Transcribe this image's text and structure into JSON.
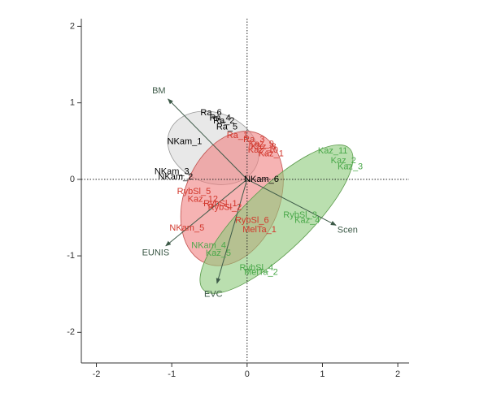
{
  "chart_data": {
    "type": "biplot",
    "xlim": [
      -2.2,
      2.15
    ],
    "ylim": [
      -2.4,
      2.1
    ],
    "xticks": [
      -2,
      -1,
      0,
      1,
      2
    ],
    "yticks": [
      -2,
      -1,
      0,
      1,
      2
    ],
    "groups": [
      {
        "color": "#000000",
        "fill": "#d9d9d9",
        "stroke": "#999999",
        "ellipse": {
          "cx": -0.45,
          "cy": 0.41,
          "rx": 0.62,
          "ry": 0.46,
          "angle": -20
        },
        "labels": [
          "Ra_6",
          "Ra_4",
          "Ra_2",
          "Ra_5",
          "NKam_1",
          "NKam_3",
          "NKam_2",
          "NKam_6"
        ],
        "x": [
          -0.62,
          -0.5,
          -0.45,
          -0.41,
          -1.06,
          -1.23,
          -1.18,
          -0.04
        ],
        "y": [
          0.87,
          0.8,
          0.76,
          0.68,
          0.49,
          0.1,
          0.03,
          0.0
        ]
      },
      {
        "color": "#d2372c",
        "fill": "#f08080",
        "stroke": "#c0504d",
        "ellipse": {
          "cx": -0.2,
          "cy": -0.25,
          "rx": 0.93,
          "ry": 0.62,
          "angle": 68
        },
        "labels": [
          "Ra_1",
          "Ra_3",
          "Kaz_9",
          "Kaz_8",
          "Kaz_10",
          "Kaz_1",
          "RybSl_5",
          "Kaz_12",
          "RybSl_1",
          "RybSl_2",
          "NKam_5",
          "RybSl_6",
          "MelTa_1"
        ],
        "x": [
          -0.27,
          -0.05,
          0.02,
          0.05,
          0.01,
          0.15,
          -0.93,
          -0.79,
          -0.58,
          -0.52,
          -1.03,
          -0.16,
          -0.06
        ],
        "y": [
          0.57,
          0.52,
          0.46,
          0.42,
          0.38,
          0.33,
          -0.16,
          -0.26,
          -0.32,
          -0.37,
          -0.64,
          -0.54,
          -0.66
        ]
      },
      {
        "color": "#4aa84a",
        "fill": "#8cc97a",
        "stroke": "#5a9a4a",
        "ellipse": {
          "cx": 0.39,
          "cy": -0.52,
          "rx": 1.35,
          "ry": 0.42,
          "angle": 44
        },
        "labels": [
          "Kaz_11",
          "Kaz_2",
          "Kaz_3",
          "RybSl_3",
          "Kaz_4",
          "NKam_4",
          "Kaz_5",
          "RybSl_4",
          "MelTa_2"
        ],
        "x": [
          0.94,
          1.11,
          1.2,
          0.48,
          0.63,
          -0.74,
          -0.55,
          -0.1,
          -0.04
        ],
        "y": [
          0.37,
          0.24,
          0.16,
          -0.47,
          -0.54,
          -0.87,
          -0.97,
          -1.16,
          -1.22
        ]
      }
    ],
    "arrows": {
      "color": "#3d5a48",
      "labels": [
        "BM",
        "Scen",
        "EUNIS",
        "EVC"
      ],
      "x": [
        -1.05,
        1.18,
        -1.08,
        -0.4
      ],
      "y": [
        1.05,
        -0.6,
        -0.87,
        -1.36
      ]
    }
  }
}
